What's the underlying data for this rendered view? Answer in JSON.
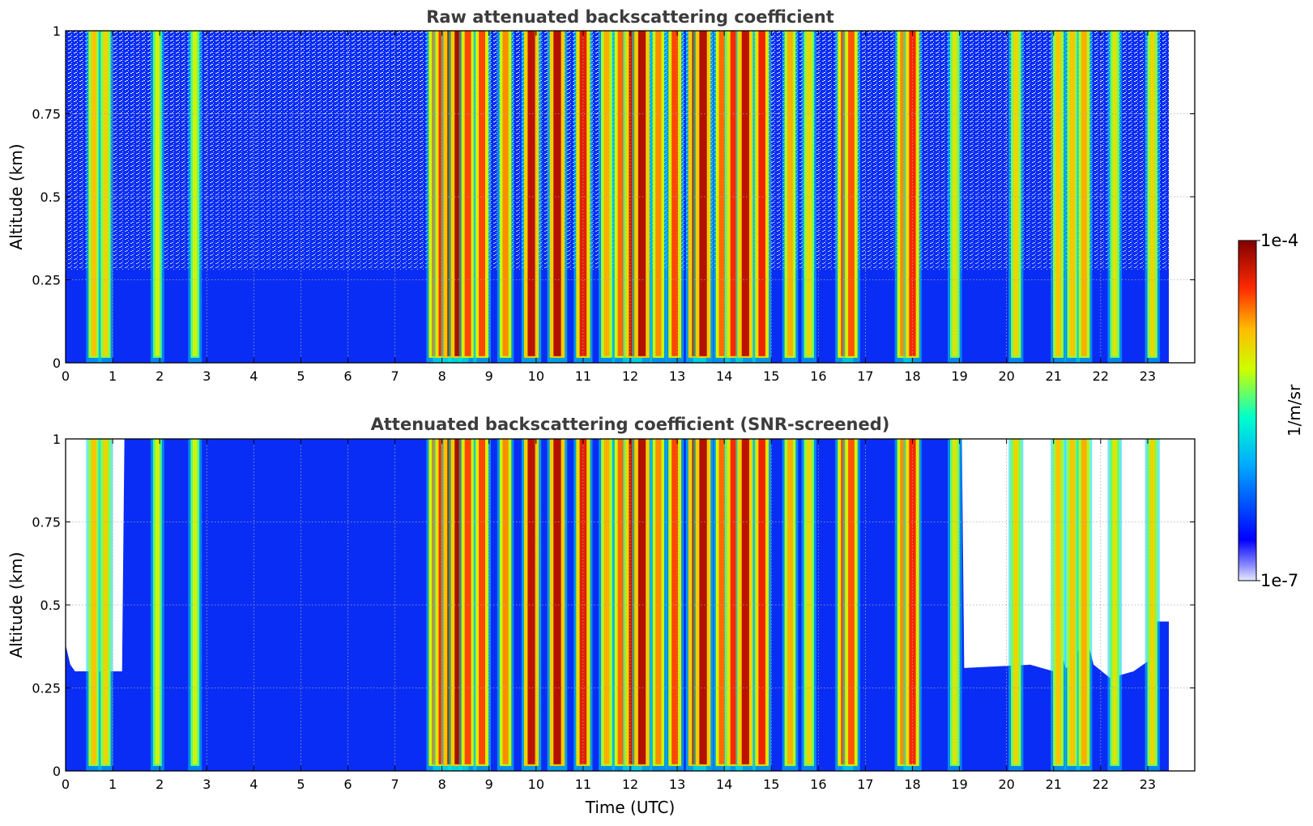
{
  "chart_data": [
    {
      "type": "heatmap",
      "title": "Raw attenuated backscattering coefficient",
      "xlabel": "",
      "ylabel": "Altitude (km)",
      "xlim": [
        0,
        24
      ],
      "ylim": [
        0,
        1
      ],
      "xticks": [
        "0",
        "1",
        "2",
        "3",
        "4",
        "5",
        "6",
        "7",
        "8",
        "9",
        "10",
        "11",
        "12",
        "13",
        "14",
        "15",
        "16",
        "17",
        "18",
        "19",
        "20",
        "21",
        "22",
        "23"
      ],
      "yticks": [
        "0",
        "0.25",
        "0.5",
        "0.75",
        "1"
      ],
      "data_end_time": 23.45,
      "grid": true,
      "colorscale": "jet",
      "log_scale": true,
      "screened": false,
      "cloud_columns": [
        {
          "time": 0.6,
          "intensity": 0.5
        },
        {
          "time": 0.85,
          "intensity": 0.45
        },
        {
          "time": 1.95,
          "intensity": 0.35
        },
        {
          "time": 2.75,
          "intensity": 0.35
        },
        {
          "time": 7.85,
          "intensity": 0.65
        },
        {
          "time": 8.0,
          "intensity": 0.75
        },
        {
          "time": 8.2,
          "intensity": 0.97
        },
        {
          "time": 8.35,
          "intensity": 0.92
        },
        {
          "time": 8.55,
          "intensity": 0.7
        },
        {
          "time": 8.85,
          "intensity": 0.7
        },
        {
          "time": 9.35,
          "intensity": 0.6
        },
        {
          "time": 9.9,
          "intensity": 0.88
        },
        {
          "time": 10.45,
          "intensity": 0.9
        },
        {
          "time": 11.0,
          "intensity": 0.8
        },
        {
          "time": 11.5,
          "intensity": 0.55
        },
        {
          "time": 11.8,
          "intensity": 0.65
        },
        {
          "time": 12.05,
          "intensity": 0.85
        },
        {
          "time": 12.25,
          "intensity": 0.9
        },
        {
          "time": 12.6,
          "intensity": 0.6
        },
        {
          "time": 12.95,
          "intensity": 0.7
        },
        {
          "time": 13.4,
          "intensity": 0.93
        },
        {
          "time": 13.55,
          "intensity": 0.9
        },
        {
          "time": 13.95,
          "intensity": 0.65
        },
        {
          "time": 14.2,
          "intensity": 0.75
        },
        {
          "time": 14.45,
          "intensity": 0.88
        },
        {
          "time": 14.8,
          "intensity": 0.78
        },
        {
          "time": 15.4,
          "intensity": 0.55
        },
        {
          "time": 15.8,
          "intensity": 0.45
        },
        {
          "time": 16.55,
          "intensity": 0.72
        },
        {
          "time": 16.7,
          "intensity": 0.68
        },
        {
          "time": 17.8,
          "intensity": 0.6
        },
        {
          "time": 18.0,
          "intensity": 0.75
        },
        {
          "time": 18.9,
          "intensity": 0.4
        },
        {
          "time": 20.2,
          "intensity": 0.45
        },
        {
          "time": 21.1,
          "intensity": 0.5
        },
        {
          "time": 21.4,
          "intensity": 0.5
        },
        {
          "time": 21.65,
          "intensity": 0.55
        },
        {
          "time": 22.3,
          "intensity": 0.4
        },
        {
          "time": 23.1,
          "intensity": 0.45
        }
      ]
    },
    {
      "type": "heatmap",
      "title": "Attenuated backscattering coefficient (SNR-screened)",
      "xlabel": "Time (UTC)",
      "ylabel": "Altitude (km)",
      "xlim": [
        0,
        24
      ],
      "ylim": [
        0,
        1
      ],
      "xticks": [
        "0",
        "1",
        "2",
        "3",
        "4",
        "5",
        "6",
        "7",
        "8",
        "9",
        "10",
        "11",
        "12",
        "13",
        "14",
        "15",
        "16",
        "17",
        "18",
        "19",
        "20",
        "21",
        "22",
        "23"
      ],
      "yticks": [
        "0",
        "0.25",
        "0.5",
        "0.75",
        "1"
      ],
      "data_end_time": 23.45,
      "grid": true,
      "colorscale": "jet",
      "log_scale": true,
      "screened": true,
      "screened_top_altitude": [
        {
          "time": 0.0,
          "altitude": 0.38
        },
        {
          "time": 0.1,
          "altitude": 0.32
        },
        {
          "time": 0.2,
          "altitude": 0.3
        },
        {
          "time": 1.2,
          "altitude": 0.3
        },
        {
          "time": 1.25,
          "altitude": 1.0
        },
        {
          "time": 19.05,
          "altitude": 1.0
        },
        {
          "time": 19.1,
          "altitude": 0.31
        },
        {
          "time": 20.5,
          "altitude": 0.32
        },
        {
          "time": 21.0,
          "altitude": 0.3
        },
        {
          "time": 21.1,
          "altitude": 0.4
        },
        {
          "time": 21.25,
          "altitude": 0.31
        },
        {
          "time": 21.45,
          "altitude": 0.32
        },
        {
          "time": 21.65,
          "altitude": 0.43
        },
        {
          "time": 21.85,
          "altitude": 0.32
        },
        {
          "time": 22.2,
          "altitude": 0.28
        },
        {
          "time": 22.7,
          "altitude": 0.3
        },
        {
          "time": 23.0,
          "altitude": 0.33
        },
        {
          "time": 23.2,
          "altitude": 0.45
        },
        {
          "time": 23.45,
          "altitude": 0.45
        }
      ]
    },
    {
      "type": "colorbar",
      "label": "1/m/sr",
      "min_label": "1e-7",
      "max_label": "1e-4",
      "range": [
        1e-07,
        0.0001
      ],
      "log_scale": true,
      "colorscale": "jet"
    }
  ],
  "colors": {
    "background": "#ffffff",
    "title": "#3c3c3c",
    "grid": "#bbbbbb",
    "base_blue": "#0a2df5"
  }
}
